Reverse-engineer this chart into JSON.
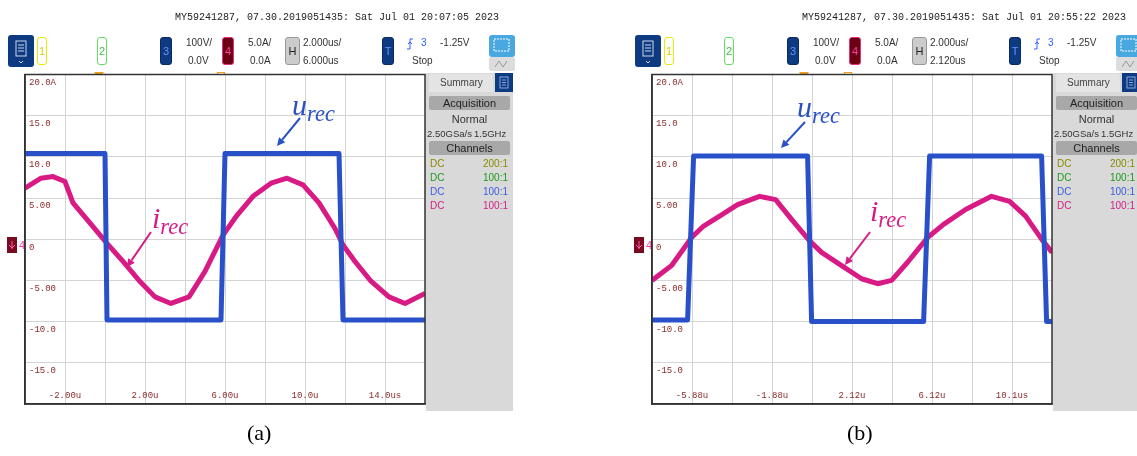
{
  "chart_data": [
    {
      "type": "line",
      "title": "(a)",
      "xlim": [
        -4,
        16
      ],
      "xticks": [
        {
          "value": -4,
          "label": null
        },
        {
          "value": -2,
          "label": "-2.00u"
        },
        {
          "value": 0,
          "label": null
        },
        {
          "value": 2,
          "label": "2.00u"
        },
        {
          "value": 4,
          "label": null
        },
        {
          "value": 6,
          "label": "6.00u"
        },
        {
          "value": 8,
          "label": null
        },
        {
          "value": 10,
          "label": "10.0u"
        },
        {
          "value": 12,
          "label": null
        },
        {
          "value": 14,
          "label": "14.0us"
        },
        {
          "value": 16,
          "label": null
        }
      ],
      "ylim": [
        -20,
        20
      ],
      "yticks": [
        {
          "value": -20,
          "label": null
        },
        {
          "value": -15,
          "label": "-15.0"
        },
        {
          "value": -10,
          "label": "-10.0"
        },
        {
          "value": -5,
          "label": "-5.00"
        },
        0,
        {
          "value": 5,
          "label": "5.00"
        },
        {
          "value": 10,
          "label": "10.0"
        },
        {
          "value": 15,
          "label": "15.0"
        },
        {
          "value": 20,
          "label": "20.0A"
        }
      ],
      "grid": true,
      "legend": false,
      "marker": "none",
      "series": [
        {
          "name": "u$_{rec}$",
          "color": "#2850c8",
          "x": [
            -4,
            0.0,
            0.1,
            5.8,
            6.0,
            11.7,
            11.9,
            16
          ],
          "values": [
            10.4,
            10.4,
            -9.8,
            -9.8,
            10.4,
            10.4,
            -9.8,
            -9.8
          ]
        },
        {
          "name": "i$_{rec}$",
          "color": "#d81b84",
          "x": [
            -4,
            -3.2,
            -2.6,
            -2,
            -1.6,
            -0.8,
            0.1,
            0.9,
            1.7,
            2.5,
            3.3,
            4.2,
            5,
            5.9,
            6.6,
            7.4,
            8.3,
            9.1,
            9.9,
            10.7,
            11.5,
            11.9,
            12.5,
            13.3,
            14.2,
            15,
            16
          ],
          "values": [
            6.2,
            7.4,
            7.6,
            7.0,
            4.4,
            2.1,
            -0.5,
            -2.7,
            -5.0,
            -7.0,
            -7.8,
            -7.0,
            -3.9,
            0.5,
            2.9,
            5.2,
            6.8,
            7.4,
            6.6,
            4.4,
            1.3,
            -0.7,
            -2.7,
            -5.1,
            -7.0,
            -7.8,
            -6.6
          ]
        }
      ],
      "annotations": [
        "MY59241287, 07.30.2019051435: Sat Jul 01 20:07:05 2023",
        "1",
        "2",
        "3",
        "100V/",
        "0.0V",
        "4",
        "5.0A/",
        "0.0A",
        "H",
        "2.000us/",
        "6.000us",
        "T",
        "3",
        "-1.25V",
        "Stop",
        "Summary",
        "Acquisition",
        "Normal",
        "2.50GSa/s",
        "1.5GHz",
        "Channels",
        "DC",
        "200:1",
        "DC",
        "100:1",
        "DC",
        "100:1",
        "DC",
        "100:1",
        "4"
      ]
    },
    {
      "type": "line",
      "title": "(b)",
      "xlim": [
        -7.88,
        12.12
      ],
      "xticks": [
        {
          "value": -7.88,
          "label": null
        },
        {
          "value": -5.88,
          "label": "-5.88u"
        },
        {
          "value": -3.88,
          "label": null
        },
        {
          "value": -1.88,
          "label": "-1.88u"
        },
        {
          "value": 0.12,
          "label": null
        },
        {
          "value": 2.12,
          "label": "2.12u"
        },
        {
          "value": 4.12,
          "label": null
        },
        {
          "value": 6.12,
          "label": "6.12u"
        },
        {
          "value": 8.12,
          "label": null
        },
        {
          "value": 10.12,
          "label": "10.1us"
        },
        {
          "value": 12.12,
          "label": null
        }
      ],
      "ylim": [
        -20,
        20
      ],
      "yticks": [
        {
          "value": -20,
          "label": null
        },
        {
          "value": -15,
          "label": "-15.0"
        },
        {
          "value": -10,
          "label": "-10.0"
        },
        {
          "value": -5,
          "label": "-5.00"
        },
        0,
        {
          "value": 5,
          "label": "5.00"
        },
        {
          "value": 10,
          "label": "10.0"
        },
        {
          "value": 15,
          "label": "15.0"
        },
        {
          "value": 20,
          "label": "20.0A"
        }
      ],
      "grid": true,
      "legend": false,
      "marker": "none",
      "series": [
        {
          "name": "u$_{rec}$",
          "color": "#2850c8",
          "x": [
            -7.88,
            -6.1,
            -5.8,
            -0.1,
            0.1,
            5.7,
            6.0,
            11.6,
            11.85,
            12.12
          ],
          "values": [
            -9.8,
            -9.8,
            10.1,
            10.1,
            -10.0,
            -10.0,
            10.1,
            10.1,
            -10.0,
            -10.0
          ]
        },
        {
          "name": "i$_{rec}$",
          "color": "#d81b84",
          "x": [
            -7.88,
            -6.9,
            -5.9,
            -5.3,
            -4.5,
            -3.6,
            -2.5,
            -1.7,
            -0.9,
            0,
            0.6,
            1.6,
            2.6,
            3.4,
            4.1,
            4.9,
            5.9,
            6.7,
            7.8,
            9.1,
            10,
            10.8,
            11.6,
            12.12
          ],
          "values": [
            -5.0,
            -3.2,
            0.2,
            1.6,
            2.8,
            4.2,
            5.2,
            4.8,
            2.4,
            -0.2,
            -1.6,
            -3.2,
            -4.8,
            -5.4,
            -5.0,
            -2.8,
            0.2,
            1.8,
            3.6,
            5.2,
            4.6,
            2.8,
            0,
            -1.6
          ]
        }
      ],
      "annotations": [
        "MY59241287, 07.30.2019051435: Sat Jul 01 20:55:22 2023",
        "1",
        "2",
        "3",
        "100V/",
        "0.0V",
        "4",
        "5.0A/",
        "0.0A",
        "H",
        "2.000us/",
        "2.120us",
        "T",
        "3",
        "-1.25V",
        "Stop",
        "Summary",
        "Acquisition",
        "Normal",
        "2.50GSa/s",
        "1.5GHz",
        "Channels",
        "DC",
        "200:1",
        "DC",
        "100:1",
        "DC",
        "100:1",
        "DC",
        "100:1",
        "4"
      ]
    }
  ]
}
